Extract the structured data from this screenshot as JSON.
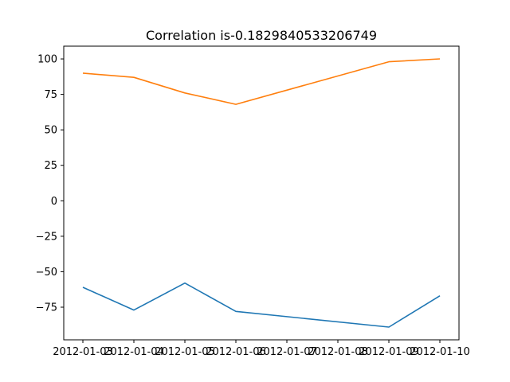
{
  "chart_data": {
    "type": "line",
    "title": "Correlation is-0.1829840533206749",
    "xlabel": "",
    "ylabel": "",
    "x": [
      "2012-01-03",
      "2012-01-04",
      "2012-01-05",
      "2012-01-06",
      "2012-01-09",
      "2012-01-10"
    ],
    "x_ticks": [
      "2012-01-03",
      "2012-01-04",
      "2012-01-05",
      "2012-01-06",
      "2012-01-07",
      "2012-01-08",
      "2012-01-09",
      "2012-01-10"
    ],
    "y_ticks": [
      "100",
      "75",
      "50",
      "25",
      "0",
      "−25",
      "−50",
      "−75"
    ],
    "y_tick_values": [
      100,
      75,
      50,
      25,
      0,
      -25,
      -50,
      -75
    ],
    "xlim": [
      "2012-01-02T15:00",
      "2012-01-10T09:00"
    ],
    "ylim": [
      -98,
      109
    ],
    "grid": false,
    "series": [
      {
        "color": "#1f77b4",
        "values": [
          -61,
          -77,
          -58,
          -78,
          -89,
          -67
        ]
      },
      {
        "color": "#ff7f0e",
        "values": [
          90,
          87,
          76,
          68,
          98,
          100
        ]
      }
    ]
  }
}
